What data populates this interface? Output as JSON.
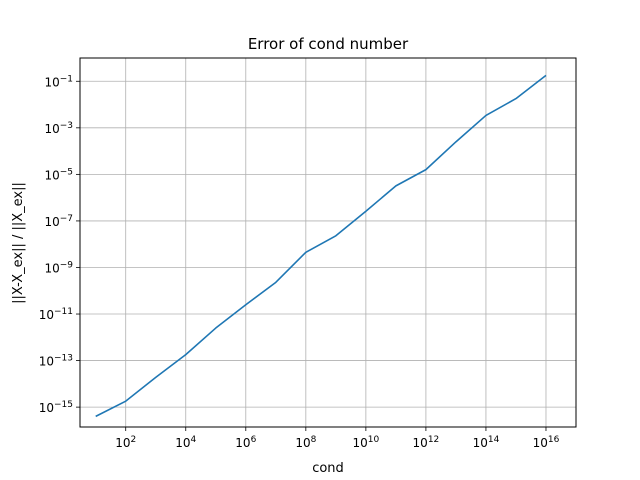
{
  "chart_data": {
    "type": "line",
    "title": "Error of cond number",
    "xlabel": "cond",
    "ylabel": "||X-X_ex|| / ||X_ex||",
    "x_scale": "log",
    "y_scale": "log",
    "xlim": [
      3.0,
      1e+17
    ],
    "ylim": [
      1.4e-16,
      1.0
    ],
    "grid": true,
    "legend": "none",
    "x_ticks": [
      {
        "base": "10",
        "exp": "2",
        "value": 100.0
      },
      {
        "base": "10",
        "exp": "4",
        "value": 10000.0
      },
      {
        "base": "10",
        "exp": "6",
        "value": 1000000.0
      },
      {
        "base": "10",
        "exp": "8",
        "value": 100000000.0
      },
      {
        "base": "10",
        "exp": "10",
        "value": 10000000000.0
      },
      {
        "base": "10",
        "exp": "12",
        "value": 1000000000000.0
      },
      {
        "base": "10",
        "exp": "14",
        "value": 100000000000000.0
      },
      {
        "base": "10",
        "exp": "16",
        "value": 1e+16
      }
    ],
    "y_ticks": [
      {
        "base": "10",
        "exp": "−15",
        "value": 1e-15
      },
      {
        "base": "10",
        "exp": "−13",
        "value": 1e-13
      },
      {
        "base": "10",
        "exp": "−11",
        "value": 1e-11
      },
      {
        "base": "10",
        "exp": "−9",
        "value": 1e-09
      },
      {
        "base": "10",
        "exp": "−7",
        "value": 1e-07
      },
      {
        "base": "10",
        "exp": "−5",
        "value": 1e-05
      },
      {
        "base": "10",
        "exp": "−3",
        "value": 0.001
      },
      {
        "base": "10",
        "exp": "−1",
        "value": 0.1
      }
    ],
    "series": [
      {
        "color": "#1f77b4",
        "x": [
          10.0,
          100.0,
          1000.0,
          10000.0,
          100000.0,
          1000000.0,
          10000000.0,
          100000000.0,
          1000000000.0,
          10000000000.0,
          100000000000.0,
          1000000000000.0,
          10000000000000.0,
          100000000000000.0,
          1000000000000000.0,
          1e+16
        ],
        "y": [
          4e-16,
          1.8e-15,
          1.9e-14,
          1.8e-13,
          2.5e-12,
          2.5e-11,
          2.3e-10,
          4.5e-09,
          2.3e-08,
          2.6e-07,
          3.2e-06,
          1.6e-05,
          0.00025,
          0.0034,
          0.018,
          0.18
        ]
      }
    ]
  }
}
